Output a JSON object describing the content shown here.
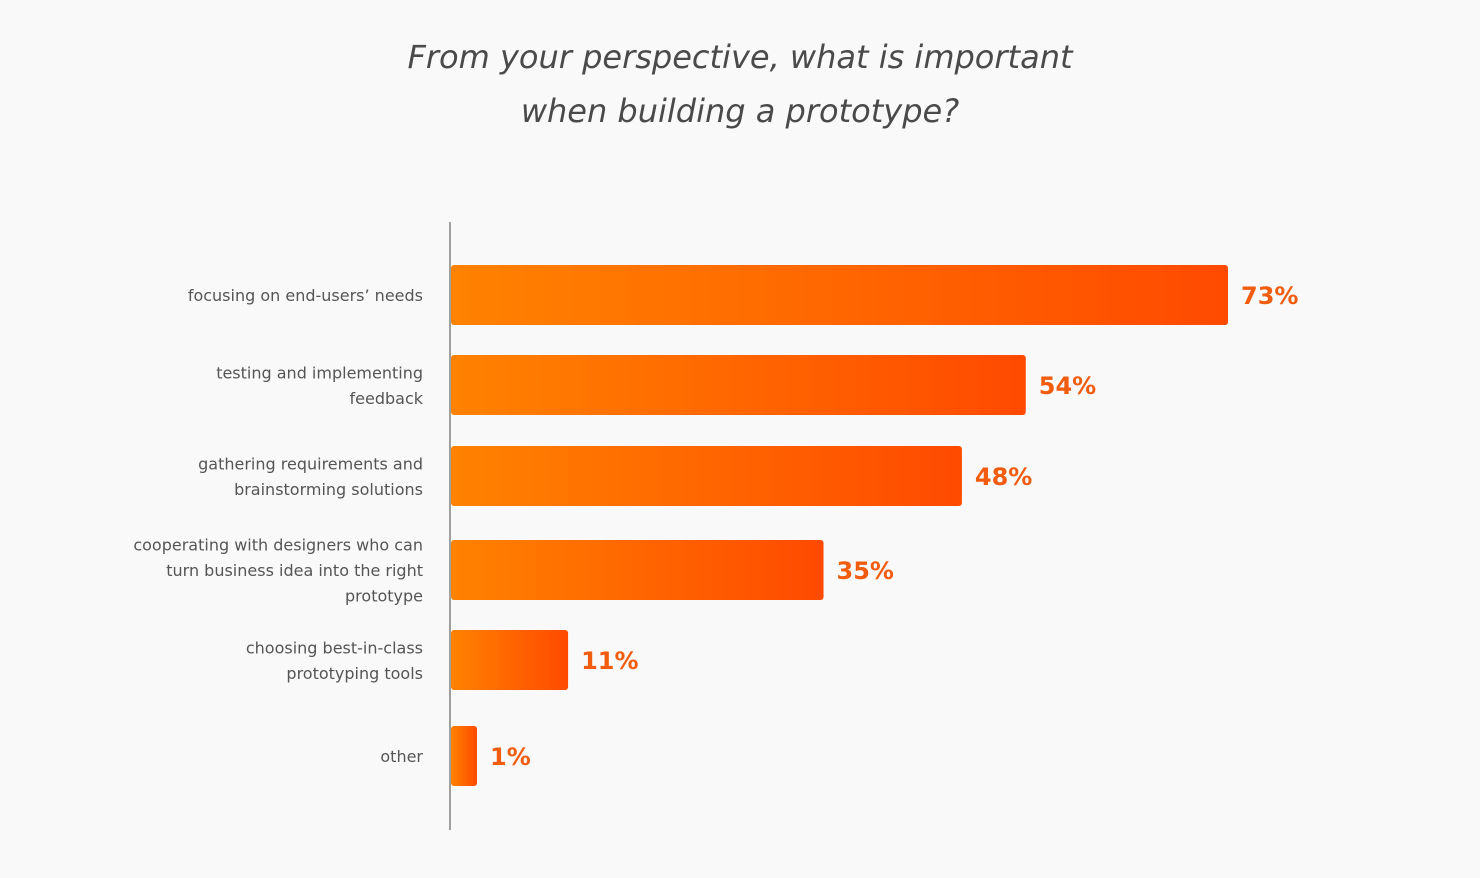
{
  "chart_data": {
    "type": "bar",
    "orientation": "horizontal",
    "title": [
      "From your perspective, what is important",
      "when building a prototype?"
    ],
    "categories": [
      [
        "focusing on end-users’ needs"
      ],
      [
        "testing and implementing",
        "feedback"
      ],
      [
        "gathering requirements and",
        "brainstorming solutions"
      ],
      [
        "cooperating with designers who can",
        "turn business idea into the right",
        "prototype"
      ],
      [
        "choosing best-in-class",
        "prototyping tools"
      ],
      [
        "other"
      ]
    ],
    "values": [
      73,
      54,
      48,
      35,
      11,
      1
    ],
    "value_labels": [
      "73%",
      "54%",
      "48%",
      "35%",
      "11%",
      "1%"
    ],
    "unit": "%",
    "xlim": [
      0,
      73
    ],
    "grid": false,
    "legend": "none",
    "colors": {
      "bar_start": "#ff8200",
      "bar_end": "#ff4a00",
      "value_label": "#f25c0f",
      "axis": "#a0a0a0",
      "title": "#4a4a4a",
      "category_label": "#555555"
    }
  }
}
